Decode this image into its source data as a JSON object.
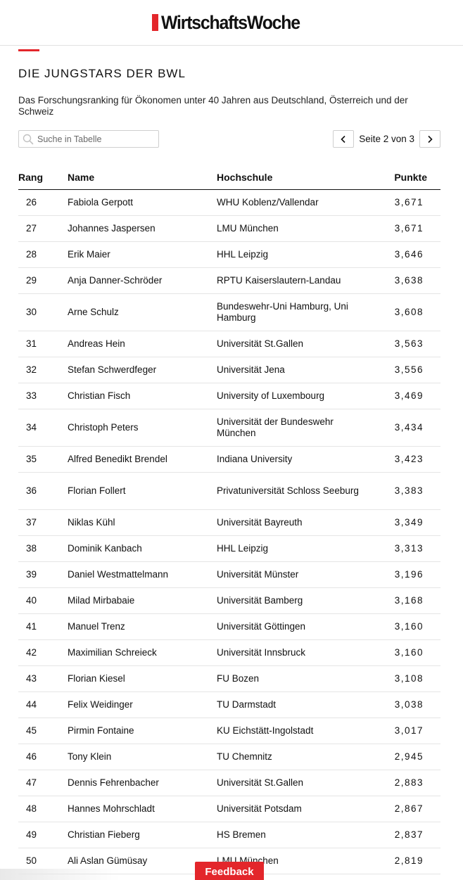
{
  "header": {
    "logo_text": "WirtschaftsWoche"
  },
  "article": {
    "title": "DIE JUNGSTARS DER BWL",
    "subtitle": "Das Forschungsranking für Ökonomen unter 40 Jahren aus Deutschland, Österreich und der Schweiz"
  },
  "search": {
    "placeholder": "Suche in Tabelle",
    "value": ""
  },
  "pagination": {
    "label": "Seite 2 von 3",
    "current": 2,
    "total": 3
  },
  "table": {
    "columns": [
      "Rang",
      "Name",
      "Hochschule",
      "Punkte"
    ],
    "rows": [
      {
        "rang": "26",
        "name": "Fabiola Gerpott",
        "hochschule": "WHU Koblenz/Vallendar",
        "punkte": "3,671"
      },
      {
        "rang": "27",
        "name": "Johannes Jaspersen",
        "hochschule": "LMU München",
        "punkte": "3,671"
      },
      {
        "rang": "28",
        "name": "Erik Maier",
        "hochschule": "HHL Leipzig",
        "punkte": "3,646"
      },
      {
        "rang": "29",
        "name": "Anja Danner-Schröder",
        "hochschule": "RPTU Kaiserslautern-Landau",
        "punkte": "3,638"
      },
      {
        "rang": "30",
        "name": "Arne Schulz",
        "hochschule": "Bundeswehr-Uni Hamburg, Uni Hamburg",
        "punkte": "3,608"
      },
      {
        "rang": "31",
        "name": "Andreas Hein",
        "hochschule": "Universität St.Gallen",
        "punkte": "3,563"
      },
      {
        "rang": "32",
        "name": "Stefan Schwerdfeger",
        "hochschule": "Universität Jena",
        "punkte": "3,556"
      },
      {
        "rang": "33",
        "name": "Christian Fisch",
        "hochschule": "University of Luxembourg",
        "punkte": "3,469"
      },
      {
        "rang": "34",
        "name": "Christoph Peters",
        "hochschule": "Universität der Bundeswehr München",
        "punkte": "3,434"
      },
      {
        "rang": "35",
        "name": "Alfred Benedikt Brendel",
        "hochschule": "Indiana University",
        "punkte": "3,423"
      },
      {
        "rang": "36",
        "name": "Florian Follert",
        "hochschule": "Privatuniversität Schloss Seeburg",
        "punkte": "3,383"
      },
      {
        "rang": "37",
        "name": "Niklas Kühl",
        "hochschule": "Universität Bayreuth",
        "punkte": "3,349"
      },
      {
        "rang": "38",
        "name": "Dominik Kanbach",
        "hochschule": "HHL Leipzig",
        "punkte": "3,313"
      },
      {
        "rang": "39",
        "name": "Daniel Westmattelmann",
        "hochschule": "Universität Münster",
        "punkte": "3,196"
      },
      {
        "rang": "40",
        "name": "Milad Mirbabaie",
        "hochschule": "Universität Bamberg",
        "punkte": "3,168"
      },
      {
        "rang": "41",
        "name": "Manuel Trenz",
        "hochschule": "Universität Göttingen",
        "punkte": "3,160"
      },
      {
        "rang": "42",
        "name": "Maximilian Schreieck",
        "hochschule": "Universität Innsbruck",
        "punkte": "3,160"
      },
      {
        "rang": "43",
        "name": "Florian Kiesel",
        "hochschule": "FU Bozen",
        "punkte": "3,108"
      },
      {
        "rang": "44",
        "name": "Felix Weidinger",
        "hochschule": "TU Darmstadt",
        "punkte": "3,038"
      },
      {
        "rang": "45",
        "name": "Pirmin Fontaine",
        "hochschule": "KU Eichstätt-Ingolstadt",
        "punkte": "3,017"
      },
      {
        "rang": "46",
        "name": "Tony Klein",
        "hochschule": "TU Chemnitz",
        "punkte": "2,945"
      },
      {
        "rang": "47",
        "name": "Dennis Fehrenbacher",
        "hochschule": "Universität St.Gallen",
        "punkte": "2,883"
      },
      {
        "rang": "48",
        "name": "Hannes Mohrschladt",
        "hochschule": "Universität Potsdam",
        "punkte": "2,867"
      },
      {
        "rang": "49",
        "name": "Christian Fieberg",
        "hochschule": "HS Bremen",
        "punkte": "2,837"
      },
      {
        "rang": "50",
        "name": "Ali Aslan Gümüsay",
        "hochschule": "LMU München",
        "punkte": "2,819"
      }
    ]
  },
  "feedback": {
    "label": "Feedback"
  },
  "colors": {
    "accent": "#e3262b",
    "text": "#111111",
    "rule": "#e5e5e5"
  }
}
